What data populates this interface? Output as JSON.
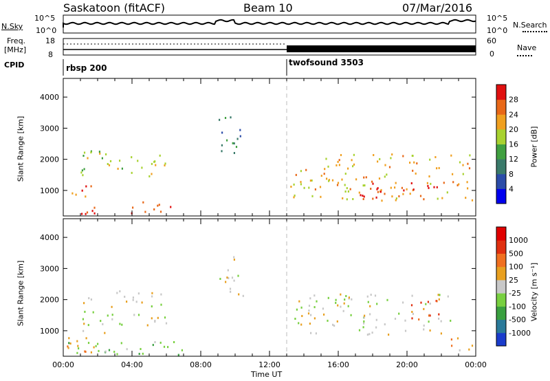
{
  "header": {
    "station": "Saskatoon (fitACF)",
    "beam": "Beam 10",
    "date": "07/Mar/2016"
  },
  "strip": {
    "nsky_label": "N.Sky",
    "nsky_ticks": [
      "10^5",
      "10^0"
    ],
    "nsearch_label": "N.Search",
    "nsearch_ticks": [
      "10^5",
      "10^0"
    ],
    "freq_label_1": "Freq.",
    "freq_label_2": "[MHz]",
    "freq_ticks": [
      "18",
      "8"
    ],
    "nave_label": "Nave",
    "nave_ticks": [
      "60",
      "0"
    ],
    "cpid_label": "CPID",
    "cpid_1": "rbsp 200",
    "cpid_2": "twofsound 3503"
  },
  "chart_data": [
    {
      "type": "heatmap",
      "panel": "power",
      "ylabel": "Slant Range [km]",
      "yticks": [
        "1000",
        "2000",
        "3000",
        "4000"
      ],
      "ylim": [
        180,
        4600
      ],
      "xticks": [
        "00:00",
        "04:00",
        "08:00",
        "12:00",
        "16:00",
        "20:00",
        "00:00"
      ],
      "colorbar_label": "Power [dB]",
      "colorbar_ticks": [
        "4",
        "8",
        "12",
        "16",
        "20",
        "24",
        "28"
      ],
      "colorbar_colors": [
        "#0000ee",
        "#2b4ca8",
        "#3a7a6a",
        "#40a040",
        "#a8d230",
        "#f0a020",
        "#e86818",
        "#e01010"
      ],
      "regions": [
        {
          "t0": 0.0,
          "t1": 4.5,
          "r0": 250,
          "r1": 500,
          "level": 7
        },
        {
          "t0": 4.5,
          "t1": 7.2,
          "r0": 280,
          "r1": 650,
          "level": 6
        },
        {
          "t0": 0.0,
          "t1": 1.8,
          "r0": 800,
          "r1": 1250,
          "level": 6
        },
        {
          "t0": 1.0,
          "t1": 6.0,
          "r0": 1400,
          "r1": 2300,
          "level": 4
        },
        {
          "t0": 9.0,
          "t1": 10.5,
          "r0": 2100,
          "r1": 3400,
          "level": 2
        },
        {
          "t0": 13.2,
          "t1": 24.0,
          "r0": 700,
          "r1": 2200,
          "level": 5
        },
        {
          "t0": 17.0,
          "t1": 22.5,
          "r0": 800,
          "r1": 1300,
          "level": 7
        }
      ]
    },
    {
      "type": "heatmap",
      "panel": "velocity",
      "ylabel": "Slant Range [km]",
      "yticks": [
        "1000",
        "2000",
        "3000",
        "4000"
      ],
      "ylim": [
        180,
        4600
      ],
      "xlabel": "Time UT",
      "xticks": [
        "00:00",
        "04:00",
        "08:00",
        "12:00",
        "16:00",
        "20:00",
        "00:00"
      ],
      "colorbar_label": "Velocity [m s⁻¹]",
      "colorbar_ticks": [
        "1000",
        "500",
        "100",
        "25",
        "-25",
        "-100",
        "-500",
        "-1000"
      ],
      "colorbar_colors": [
        "#1a3ccc",
        "#2a7a9a",
        "#3aa040",
        "#78d040",
        "#c8c8c8",
        "#e8a020",
        "#f07020",
        "#e03010",
        "#e00000"
      ],
      "regions": [
        {
          "t0": 0.0,
          "t1": 7.5,
          "r0": 250,
          "r1": 700,
          "level": 3
        },
        {
          "t0": 0.0,
          "t1": 2.5,
          "r0": 300,
          "r1": 1100,
          "level": 5
        },
        {
          "t0": 1.0,
          "t1": 6.0,
          "r0": 1200,
          "r1": 2300,
          "level": 4
        },
        {
          "t0": 9.0,
          "t1": 10.5,
          "r0": 2100,
          "r1": 3400,
          "level": 4
        },
        {
          "t0": 13.2,
          "t1": 22.5,
          "r0": 900,
          "r1": 2200,
          "level": 4
        },
        {
          "t0": 20.0,
          "t1": 22.0,
          "r0": 1300,
          "r1": 2000,
          "level": 7
        },
        {
          "t0": 22.5,
          "t1": 24.0,
          "r0": 300,
          "r1": 900,
          "level": 5
        }
      ]
    }
  ]
}
